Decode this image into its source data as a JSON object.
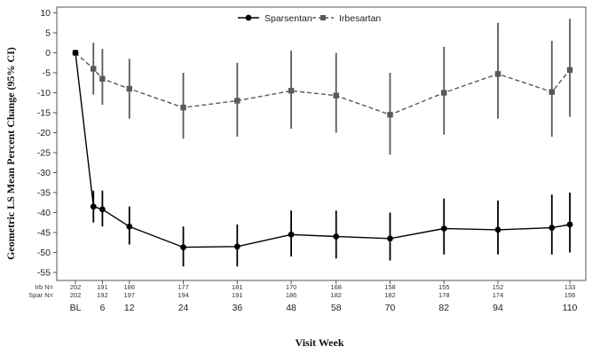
{
  "chart_data": {
    "type": "line",
    "ylabel": "Geometric LS Mean Percent Change (95% CI)",
    "xlabel": "Visit Week",
    "ylim": [
      -57,
      11
    ],
    "yticks": [
      10,
      5,
      0,
      -5,
      -10,
      -15,
      -20,
      -25,
      -30,
      -35,
      -40,
      -45,
      -50,
      -55
    ],
    "xticks": [
      {
        "label": "BL",
        "x": 0
      },
      {
        "label": "6",
        "x": 6
      },
      {
        "label": "12",
        "x": 12
      },
      {
        "label": "24",
        "x": 24
      },
      {
        "label": "36",
        "x": 36
      },
      {
        "label": "48",
        "x": 48
      },
      {
        "label": "58",
        "x": 58
      },
      {
        "label": "70",
        "x": 70
      },
      {
        "label": "82",
        "x": 82
      },
      {
        "label": "94",
        "x": 94
      },
      {
        "label": "110",
        "x": 110
      }
    ],
    "legend_position": "top-center",
    "series": [
      {
        "name": "Sparsentan",
        "color": "#000000",
        "marker": "circle",
        "line_style": "solid",
        "points": [
          {
            "x": 0,
            "y": 0,
            "lo": 0,
            "hi": 0
          },
          {
            "x": 4,
            "y": -38.5,
            "lo": -42.5,
            "hi": -34.5
          },
          {
            "x": 6,
            "y": -39.2,
            "lo": -43.5,
            "hi": -34.5
          },
          {
            "x": 12,
            "y": -43.5,
            "lo": -48,
            "hi": -38.5
          },
          {
            "x": 24,
            "y": -48.7,
            "lo": -53.5,
            "hi": -43.5
          },
          {
            "x": 36,
            "y": -48.5,
            "lo": -53.5,
            "hi": -43
          },
          {
            "x": 48,
            "y": -45.5,
            "lo": -51,
            "hi": -39.5
          },
          {
            "x": 58,
            "y": -46,
            "lo": -51.5,
            "hi": -39.5
          },
          {
            "x": 70,
            "y": -46.5,
            "lo": -52,
            "hi": -40
          },
          {
            "x": 82,
            "y": -44,
            "lo": -50.5,
            "hi": -36.5
          },
          {
            "x": 94,
            "y": -44.3,
            "lo": -50.5,
            "hi": -37
          },
          {
            "x": 106,
            "y": -43.8,
            "lo": -50.5,
            "hi": -35.5
          },
          {
            "x": 110,
            "y": -43,
            "lo": -50,
            "hi": -35
          }
        ]
      },
      {
        "name": "Irbesartan",
        "color": "#595959",
        "marker": "square",
        "line_style": "dashed",
        "points": [
          {
            "x": 0,
            "y": 0,
            "lo": 0,
            "hi": 0
          },
          {
            "x": 4,
            "y": -4,
            "lo": -10.5,
            "hi": 2.5
          },
          {
            "x": 6,
            "y": -6.5,
            "lo": -13,
            "hi": 1
          },
          {
            "x": 12,
            "y": -9,
            "lo": -16.5,
            "hi": -1.5
          },
          {
            "x": 24,
            "y": -13.7,
            "lo": -21.5,
            "hi": -5
          },
          {
            "x": 36,
            "y": -12,
            "lo": -21,
            "hi": -2.5
          },
          {
            "x": 48,
            "y": -9.5,
            "lo": -19,
            "hi": 0.5
          },
          {
            "x": 58,
            "y": -10.7,
            "lo": -20,
            "hi": 0
          },
          {
            "x": 70,
            "y": -15.5,
            "lo": -25.5,
            "hi": -5
          },
          {
            "x": 82,
            "y": -10,
            "lo": -20.5,
            "hi": 1.5
          },
          {
            "x": 94,
            "y": -5.3,
            "lo": -16.5,
            "hi": 7.5
          },
          {
            "x": 106,
            "y": -9.8,
            "lo": -21,
            "hi": 3
          },
          {
            "x": 110,
            "y": -4.3,
            "lo": -16,
            "hi": 8.5
          }
        ]
      }
    ],
    "n_table": {
      "rows": [
        {
          "label": "Irb N=",
          "values": [
            {
              "x": 0,
              "text": "202"
            },
            {
              "x": 6,
              "text": "191"
            },
            {
              "x": 12,
              "text": "186"
            },
            {
              "x": 24,
              "text": "177"
            },
            {
              "x": 36,
              "text": "181"
            },
            {
              "x": 48,
              "text": "170"
            },
            {
              "x": 58,
              "text": "168"
            },
            {
              "x": 70,
              "text": "158"
            },
            {
              "x": 82,
              "text": "155"
            },
            {
              "x": 94,
              "text": "152"
            },
            {
              "x": 110,
              "text": "133"
            }
          ]
        },
        {
          "label": "Spar N=",
          "values": [
            {
              "x": 0,
              "text": "202"
            },
            {
              "x": 6,
              "text": "192"
            },
            {
              "x": 12,
              "text": "197"
            },
            {
              "x": 24,
              "text": "194"
            },
            {
              "x": 36,
              "text": "191"
            },
            {
              "x": 48,
              "text": "186"
            },
            {
              "x": 58,
              "text": "182"
            },
            {
              "x": 70,
              "text": "182"
            },
            {
              "x": 82,
              "text": "178"
            },
            {
              "x": 94,
              "text": "174"
            },
            {
              "x": 110,
              "text": "156"
            }
          ]
        }
      ]
    }
  }
}
